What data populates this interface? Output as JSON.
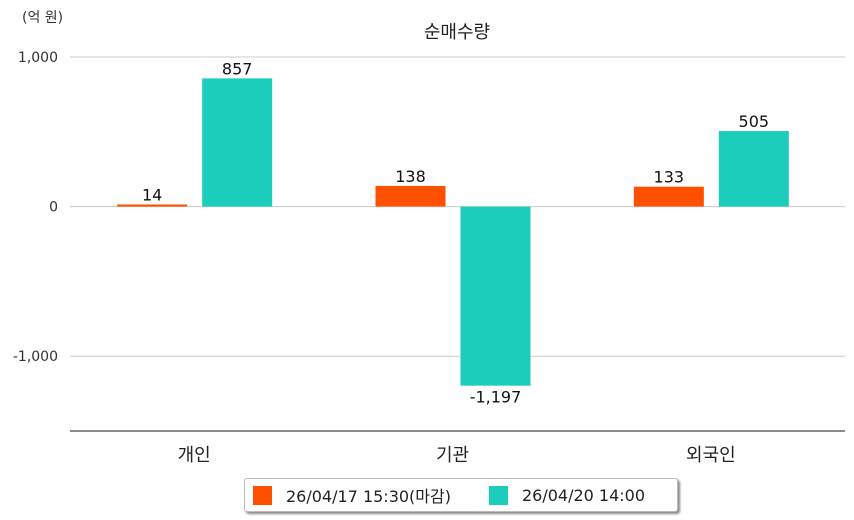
{
  "chart_data": {
    "type": "bar",
    "title": "순매수량",
    "unit_label": "(억 원)",
    "categories": [
      "개인",
      "기관",
      "외국인"
    ],
    "series": [
      {
        "name": "26/04/17 15:30(마감)",
        "color": "#FF5000",
        "values": [
          14,
          138,
          133
        ],
        "labels": [
          "14",
          "138",
          "133"
        ]
      },
      {
        "name": "26/04/20 14:00",
        "color": "#1DCDBC",
        "values": [
          857,
          -1197,
          505
        ],
        "labels": [
          "857",
          "-1,197",
          "505"
        ]
      }
    ],
    "ylim": [
      -1500,
      1000
    ],
    "yticks": [
      1000,
      0,
      -1000
    ],
    "ytick_labels": [
      "1,000",
      "0",
      "-1,000"
    ],
    "grid": true,
    "legend_position": "bottom"
  }
}
